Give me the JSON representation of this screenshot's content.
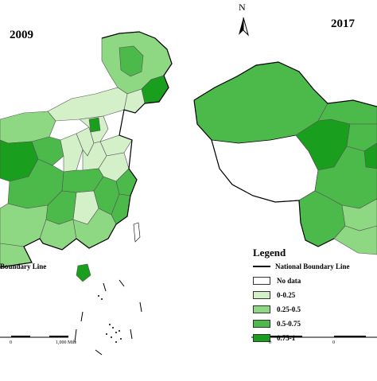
{
  "maps": {
    "left_year": "2009",
    "right_year": "2017",
    "north_label": "N",
    "left_partial_legend": "Boundary Line"
  },
  "legend": {
    "title": "Legend",
    "boundary_label": "National Boundary Line",
    "classes": [
      {
        "label": "No data",
        "color": "#ffffff"
      },
      {
        "label": "0-0.25",
        "color": "#d4f0c8"
      },
      {
        "label": "0.25-0.5",
        "color": "#8fd883"
      },
      {
        "label": "0.5-0.75",
        "color": "#4cba4a"
      },
      {
        "label": "0.75-1",
        "color": "#1a9e1e"
      }
    ]
  },
  "scale": {
    "left_labels": [
      "0",
      "1,000 Mile"
    ],
    "right_labels": [
      "0",
      "0"
    ]
  }
}
